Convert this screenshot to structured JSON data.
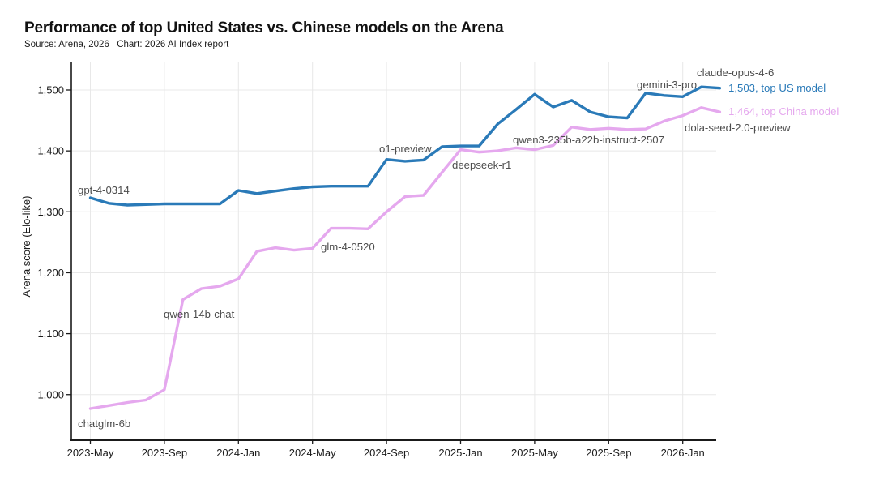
{
  "header": {
    "title": "Performance of top United States vs. Chinese models on the Arena",
    "subtitle": "Source: Arena, 2026 | Chart: 2026 AI Index report"
  },
  "chart_data": {
    "type": "line",
    "title": "Performance of top United States vs. Chinese models on the Arena",
    "source_note": "Source: Arena, 2026 | Chart: 2026 AI Index report",
    "xlabel": "",
    "ylabel": "Arena score (Elo-like)",
    "ylim": [
      960,
      1540
    ],
    "grid": true,
    "us_color": "#2a7ab8",
    "china_color": "#e5a8ee",
    "annotation_color": "#4d4d4d",
    "axis_color": "#1a1a1a",
    "grid_color": "#e8e8e8",
    "y_ticks": [
      {
        "value": 1000,
        "label": "1,000"
      },
      {
        "value": 1100,
        "label": "1,100"
      },
      {
        "value": 1200,
        "label": "1,200"
      },
      {
        "value": 1300,
        "label": "1,300"
      },
      {
        "value": 1400,
        "label": "1,400"
      },
      {
        "value": 1500,
        "label": "1,500"
      }
    ],
    "x_ticks": [
      {
        "mi": 0,
        "label": "2023-May"
      },
      {
        "mi": 4,
        "label": "2023-Sep"
      },
      {
        "mi": 8,
        "label": "2024-Jan"
      },
      {
        "mi": 12,
        "label": "2024-May"
      },
      {
        "mi": 16,
        "label": "2024-Sep"
      },
      {
        "mi": 20,
        "label": "2025-Jan"
      },
      {
        "mi": 24,
        "label": "2025-May"
      },
      {
        "mi": 28,
        "label": "2025-Sep"
      },
      {
        "mi": 32,
        "label": "2026-Jan"
      }
    ],
    "x_months": [
      "2023-05",
      "2023-06",
      "2023-07",
      "2023-08",
      "2023-09",
      "2023-10",
      "2023-11",
      "2023-12",
      "2024-01",
      "2024-02",
      "2024-03",
      "2024-04",
      "2024-05",
      "2024-06",
      "2024-07",
      "2024-08",
      "2024-09",
      "2024-10",
      "2024-11",
      "2024-12",
      "2025-01",
      "2025-02",
      "2025-03",
      "2025-04",
      "2025-05",
      "2025-06",
      "2025-07",
      "2025-08",
      "2025-09",
      "2025-10",
      "2025-11",
      "2025-12",
      "2026-01",
      "2026-02",
      "2026-03"
    ],
    "series": [
      {
        "id": "us",
        "name": "Top US model",
        "color_key": "us_color",
        "final_value": 1503,
        "values": [
          1323,
          1314,
          1311,
          1312,
          1313,
          1313,
          1313,
          1313,
          1335,
          1330,
          1334,
          1338,
          1341,
          1342,
          1342,
          1342,
          1386,
          1383,
          1385,
          1407,
          1408,
          1408,
          1444,
          1468,
          1493,
          1472,
          1483,
          1464,
          1456,
          1454,
          1495,
          1491,
          1489,
          1505,
          1503
        ]
      },
      {
        "id": "china",
        "name": "Top China model",
        "color_key": "china_color",
        "final_value": 1464,
        "values": [
          977,
          982,
          987,
          991,
          1008,
          1156,
          1174,
          1178,
          1190,
          1235,
          1241,
          1237,
          1240,
          1273,
          1273,
          1272,
          1300,
          1325,
          1327,
          1365,
          1402,
          1398,
          1400,
          1405,
          1402,
          1409,
          1439,
          1435,
          1437,
          1435,
          1436,
          1449,
          1458,
          1471,
          1464
        ]
      }
    ],
    "annotations": [
      {
        "id": "gpt-4-0314",
        "label": "gpt-4-0314",
        "color": "gray"
      },
      {
        "id": "chatglm-6b",
        "label": "chatglm-6b",
        "color": "gray"
      },
      {
        "id": "qwen-14b-chat",
        "label": "qwen-14b-chat",
        "color": "gray"
      },
      {
        "id": "glm-4-0520",
        "label": "glm-4-0520",
        "color": "gray"
      },
      {
        "id": "o1-preview",
        "label": "o1-preview",
        "color": "gray"
      },
      {
        "id": "deepseek-r1",
        "label": "deepseek-r1",
        "color": "gray"
      },
      {
        "id": "qwen3-235b-a22b-instruct-2507",
        "label": "qwen3-235b-a22b-instruct-2507",
        "color": "gray"
      },
      {
        "id": "gemini-3-pro",
        "label": "gemini-3-pro",
        "color": "gray"
      },
      {
        "id": "claude-opus-4-6",
        "label": "claude-opus-4-6",
        "color": "gray"
      },
      {
        "id": "dola-seed-2.0-preview",
        "label": "dola-seed-2.0-preview",
        "color": "gray"
      },
      {
        "id": "us-end-label",
        "label": "1,503, top US model",
        "color": "us"
      },
      {
        "id": "china-end-label",
        "label": "1,464, top China model",
        "color": "china"
      }
    ]
  }
}
